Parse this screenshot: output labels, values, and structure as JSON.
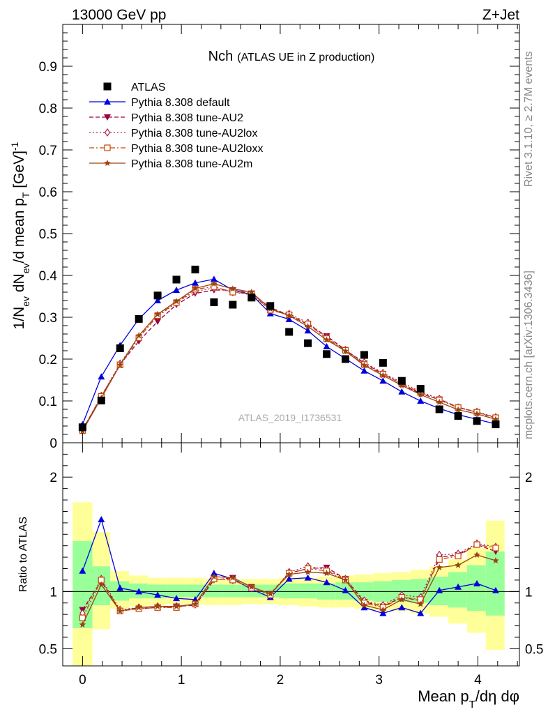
{
  "header": {
    "left": "13000 GeV pp",
    "right": "Z+Jet"
  },
  "title": {
    "main": "Nch",
    "sub": "(ATLAS UE in Z production)"
  },
  "analysis_id": "ATLAS_2019_I1736531",
  "side_text": {
    "rivet": "Rivet 3.1.10, ≥ 2.7M events",
    "mcplots": "mcplots.cern.ch [arXiv:1306.3436]"
  },
  "axes": {
    "main_ylabel": "1/N_ev dN_ev/d mean p_T [GeV]^-1",
    "ratio_ylabel": "Ratio to ATLAS",
    "xlabel": "Mean p_T/dη dφ"
  },
  "colors": {
    "data": "#000000",
    "default": "#0000dd",
    "au2": "#990044",
    "au2lox": "#aa2255",
    "au2loxx": "#cc4400",
    "au2m": "#994411",
    "band_outer": "#ffff99",
    "band_inner": "#99ff99"
  },
  "chart_data": [
    {
      "type": "scatter",
      "panel": "main",
      "xlim": [
        -0.2,
        4.42
      ],
      "ylim": [
        0,
        1.0
      ],
      "yticks": [
        0,
        0.1,
        0.2,
        0.3,
        0.4,
        0.5,
        0.6,
        0.7,
        0.8,
        0.9
      ],
      "ytick_labels": [
        "0",
        "0.1",
        "0.2",
        "0.3",
        "0.4",
        "0.5",
        "0.6",
        "0.7",
        "0.8",
        "0.9"
      ],
      "xticks": [
        0,
        1,
        2,
        3,
        4
      ],
      "xtick_labels": [
        "0",
        "1",
        "2",
        "3",
        "4"
      ],
      "legend_position": "top-left",
      "x": [
        0.0,
        0.19,
        0.38,
        0.57,
        0.76,
        0.95,
        1.14,
        1.33,
        1.52,
        1.71,
        1.9,
        2.09,
        2.28,
        2.47,
        2.66,
        2.85,
        3.04,
        3.23,
        3.42,
        3.61,
        3.8,
        3.99,
        4.18
      ],
      "series": [
        {
          "key": "data",
          "name": "ATLAS",
          "style": "markers",
          "marker": "square",
          "values": [
            0.037,
            0.101,
            0.226,
            0.296,
            0.352,
            0.39,
            0.414,
            0.336,
            0.33,
            0.347,
            0.327,
            0.265,
            0.238,
            0.212,
            0.2,
            0.21,
            0.191,
            0.148,
            0.129,
            0.08,
            0.064,
            0.052,
            0.044
          ]
        },
        {
          "key": "default",
          "name": "Pythia 8.308 default",
          "style": "solid",
          "marker": "triangle-up",
          "values": [
            0.044,
            0.158,
            0.233,
            0.296,
            0.34,
            0.365,
            0.382,
            0.391,
            0.365,
            0.354,
            0.309,
            0.295,
            0.268,
            0.23,
            0.201,
            0.172,
            0.148,
            0.122,
            0.1,
            0.082,
            0.067,
            0.056,
            0.045
          ]
        },
        {
          "key": "au2",
          "name": "Pythia 8.308 tune-AU2",
          "style": "dashed",
          "marker": "triangle-down",
          "values": [
            0.031,
            0.11,
            0.187,
            0.243,
            0.29,
            0.33,
            0.357,
            0.365,
            0.365,
            0.357,
            0.323,
            0.305,
            0.283,
            0.255,
            0.222,
            0.19,
            0.165,
            0.14,
            0.117,
            0.104,
            0.085,
            0.073,
            0.059
          ]
        },
        {
          "key": "au2lox",
          "name": "Pythia 8.308 tune-AU2lox",
          "style": "dotted",
          "marker": "diamond",
          "values": [
            0.03,
            0.112,
            0.189,
            0.253,
            0.302,
            0.335,
            0.362,
            0.37,
            0.36,
            0.354,
            0.318,
            0.308,
            0.287,
            0.252,
            0.222,
            0.192,
            0.167,
            0.144,
            0.122,
            0.105,
            0.084,
            0.074,
            0.061
          ]
        },
        {
          "key": "au2loxx",
          "name": "Pythia 8.308 tune-AU2loxx",
          "style": "dashdot",
          "marker": "square-open",
          "values": [
            0.029,
            0.111,
            0.186,
            0.251,
            0.304,
            0.335,
            0.367,
            0.373,
            0.36,
            0.356,
            0.317,
            0.306,
            0.284,
            0.249,
            0.221,
            0.187,
            0.164,
            0.141,
            0.12,
            0.102,
            0.084,
            0.073,
            0.06
          ]
        },
        {
          "key": "au2m",
          "name": "Pythia 8.308 tune-AU2m",
          "style": "solid",
          "marker": "star",
          "values": [
            0.028,
            0.107,
            0.186,
            0.256,
            0.307,
            0.338,
            0.369,
            0.38,
            0.368,
            0.36,
            0.32,
            0.304,
            0.278,
            0.246,
            0.219,
            0.185,
            0.161,
            0.137,
            0.115,
            0.097,
            0.079,
            0.069,
            0.056
          ]
        }
      ]
    },
    {
      "type": "line",
      "panel": "ratio",
      "xlim": [
        -0.2,
        4.42
      ],
      "ylim": [
        0.35,
        2.3
      ],
      "yticks": [
        0.5,
        1,
        2
      ],
      "ytick_labels": [
        "0.5",
        "1",
        "2"
      ],
      "reference_line": 1,
      "x": [
        0.0,
        0.19,
        0.38,
        0.57,
        0.76,
        0.95,
        1.14,
        1.33,
        1.52,
        1.71,
        1.9,
        2.09,
        2.28,
        2.47,
        2.66,
        2.85,
        3.04,
        3.23,
        3.42,
        3.61,
        3.8,
        3.99,
        4.18
      ],
      "bands": {
        "x_edges": [
          -0.1,
          0.1,
          0.28,
          0.47,
          0.66,
          0.85,
          1.04,
          1.23,
          1.42,
          1.61,
          1.8,
          1.99,
          2.18,
          2.37,
          2.56,
          2.75,
          2.94,
          3.13,
          3.32,
          3.51,
          3.7,
          3.89,
          4.08,
          4.27
        ],
        "outer_low": [
          0.35,
          0.67,
          0.85,
          0.87,
          0.88,
          0.89,
          0.89,
          0.88,
          0.88,
          0.89,
          0.89,
          0.88,
          0.87,
          0.86,
          0.86,
          0.85,
          0.84,
          0.83,
          0.81,
          0.78,
          0.72,
          0.64,
          0.49
        ],
        "outer_high": [
          1.78,
          1.52,
          1.18,
          1.14,
          1.12,
          1.12,
          1.12,
          1.11,
          1.11,
          1.11,
          1.11,
          1.12,
          1.12,
          1.13,
          1.14,
          1.15,
          1.16,
          1.17,
          1.19,
          1.22,
          1.28,
          1.38,
          1.62
        ],
        "inner_low": [
          0.68,
          0.88,
          0.92,
          0.94,
          0.94,
          0.95,
          0.95,
          0.95,
          0.95,
          0.95,
          0.95,
          0.94,
          0.94,
          0.93,
          0.93,
          0.92,
          0.91,
          0.91,
          0.9,
          0.88,
          0.86,
          0.83,
          0.79
        ],
        "inner_high": [
          1.44,
          1.22,
          1.09,
          1.07,
          1.06,
          1.06,
          1.06,
          1.06,
          1.06,
          1.06,
          1.06,
          1.07,
          1.07,
          1.07,
          1.08,
          1.08,
          1.09,
          1.1,
          1.11,
          1.13,
          1.17,
          1.23,
          1.35
        ]
      },
      "series": [
        {
          "key": "default",
          "name": "Pythia 8.308 default",
          "values": [
            1.18,
            1.63,
            1.03,
            1.0,
            0.97,
            0.94,
            0.93,
            1.16,
            1.11,
            1.02,
            0.95,
            1.11,
            1.12,
            1.08,
            1.01,
            0.86,
            0.81,
            0.86,
            0.81,
            1.01,
            1.04,
            1.07,
            1.01
          ]
        },
        {
          "key": "au2",
          "name": "Pythia 8.308 tune-AU2",
          "values": [
            0.84,
            1.09,
            0.83,
            0.85,
            0.86,
            0.87,
            0.88,
            1.1,
            1.12,
            1.04,
            0.98,
            1.16,
            1.2,
            1.21,
            1.11,
            0.91,
            0.87,
            0.95,
            0.92,
            1.3,
            1.32,
            1.41,
            1.35
          ]
        },
        {
          "key": "au2lox",
          "name": "Pythia 8.308 tune-AU2lox",
          "values": [
            0.81,
            1.11,
            0.84,
            0.86,
            0.87,
            0.87,
            0.89,
            1.11,
            1.1,
            1.03,
            0.97,
            1.17,
            1.22,
            1.19,
            1.11,
            0.92,
            0.88,
            0.97,
            0.95,
            1.32,
            1.33,
            1.42,
            1.39
          ]
        },
        {
          "key": "au2loxx",
          "name": "Pythia 8.308 tune-AU2loxx",
          "values": [
            0.77,
            1.1,
            0.83,
            0.85,
            0.86,
            0.86,
            0.89,
            1.11,
            1.1,
            1.03,
            0.97,
            1.16,
            1.2,
            1.18,
            1.1,
            0.9,
            0.86,
            0.95,
            0.93,
            1.28,
            1.31,
            1.41,
            1.38
          ]
        },
        {
          "key": "au2m",
          "name": "Pythia 8.308 tune-AU2m",
          "values": [
            0.71,
            1.06,
            0.83,
            0.86,
            0.87,
            0.87,
            0.89,
            1.13,
            1.12,
            1.04,
            0.98,
            1.15,
            1.17,
            1.16,
            1.1,
            0.88,
            0.84,
            0.93,
            0.89,
            1.21,
            1.23,
            1.32,
            1.27
          ]
        }
      ]
    }
  ]
}
